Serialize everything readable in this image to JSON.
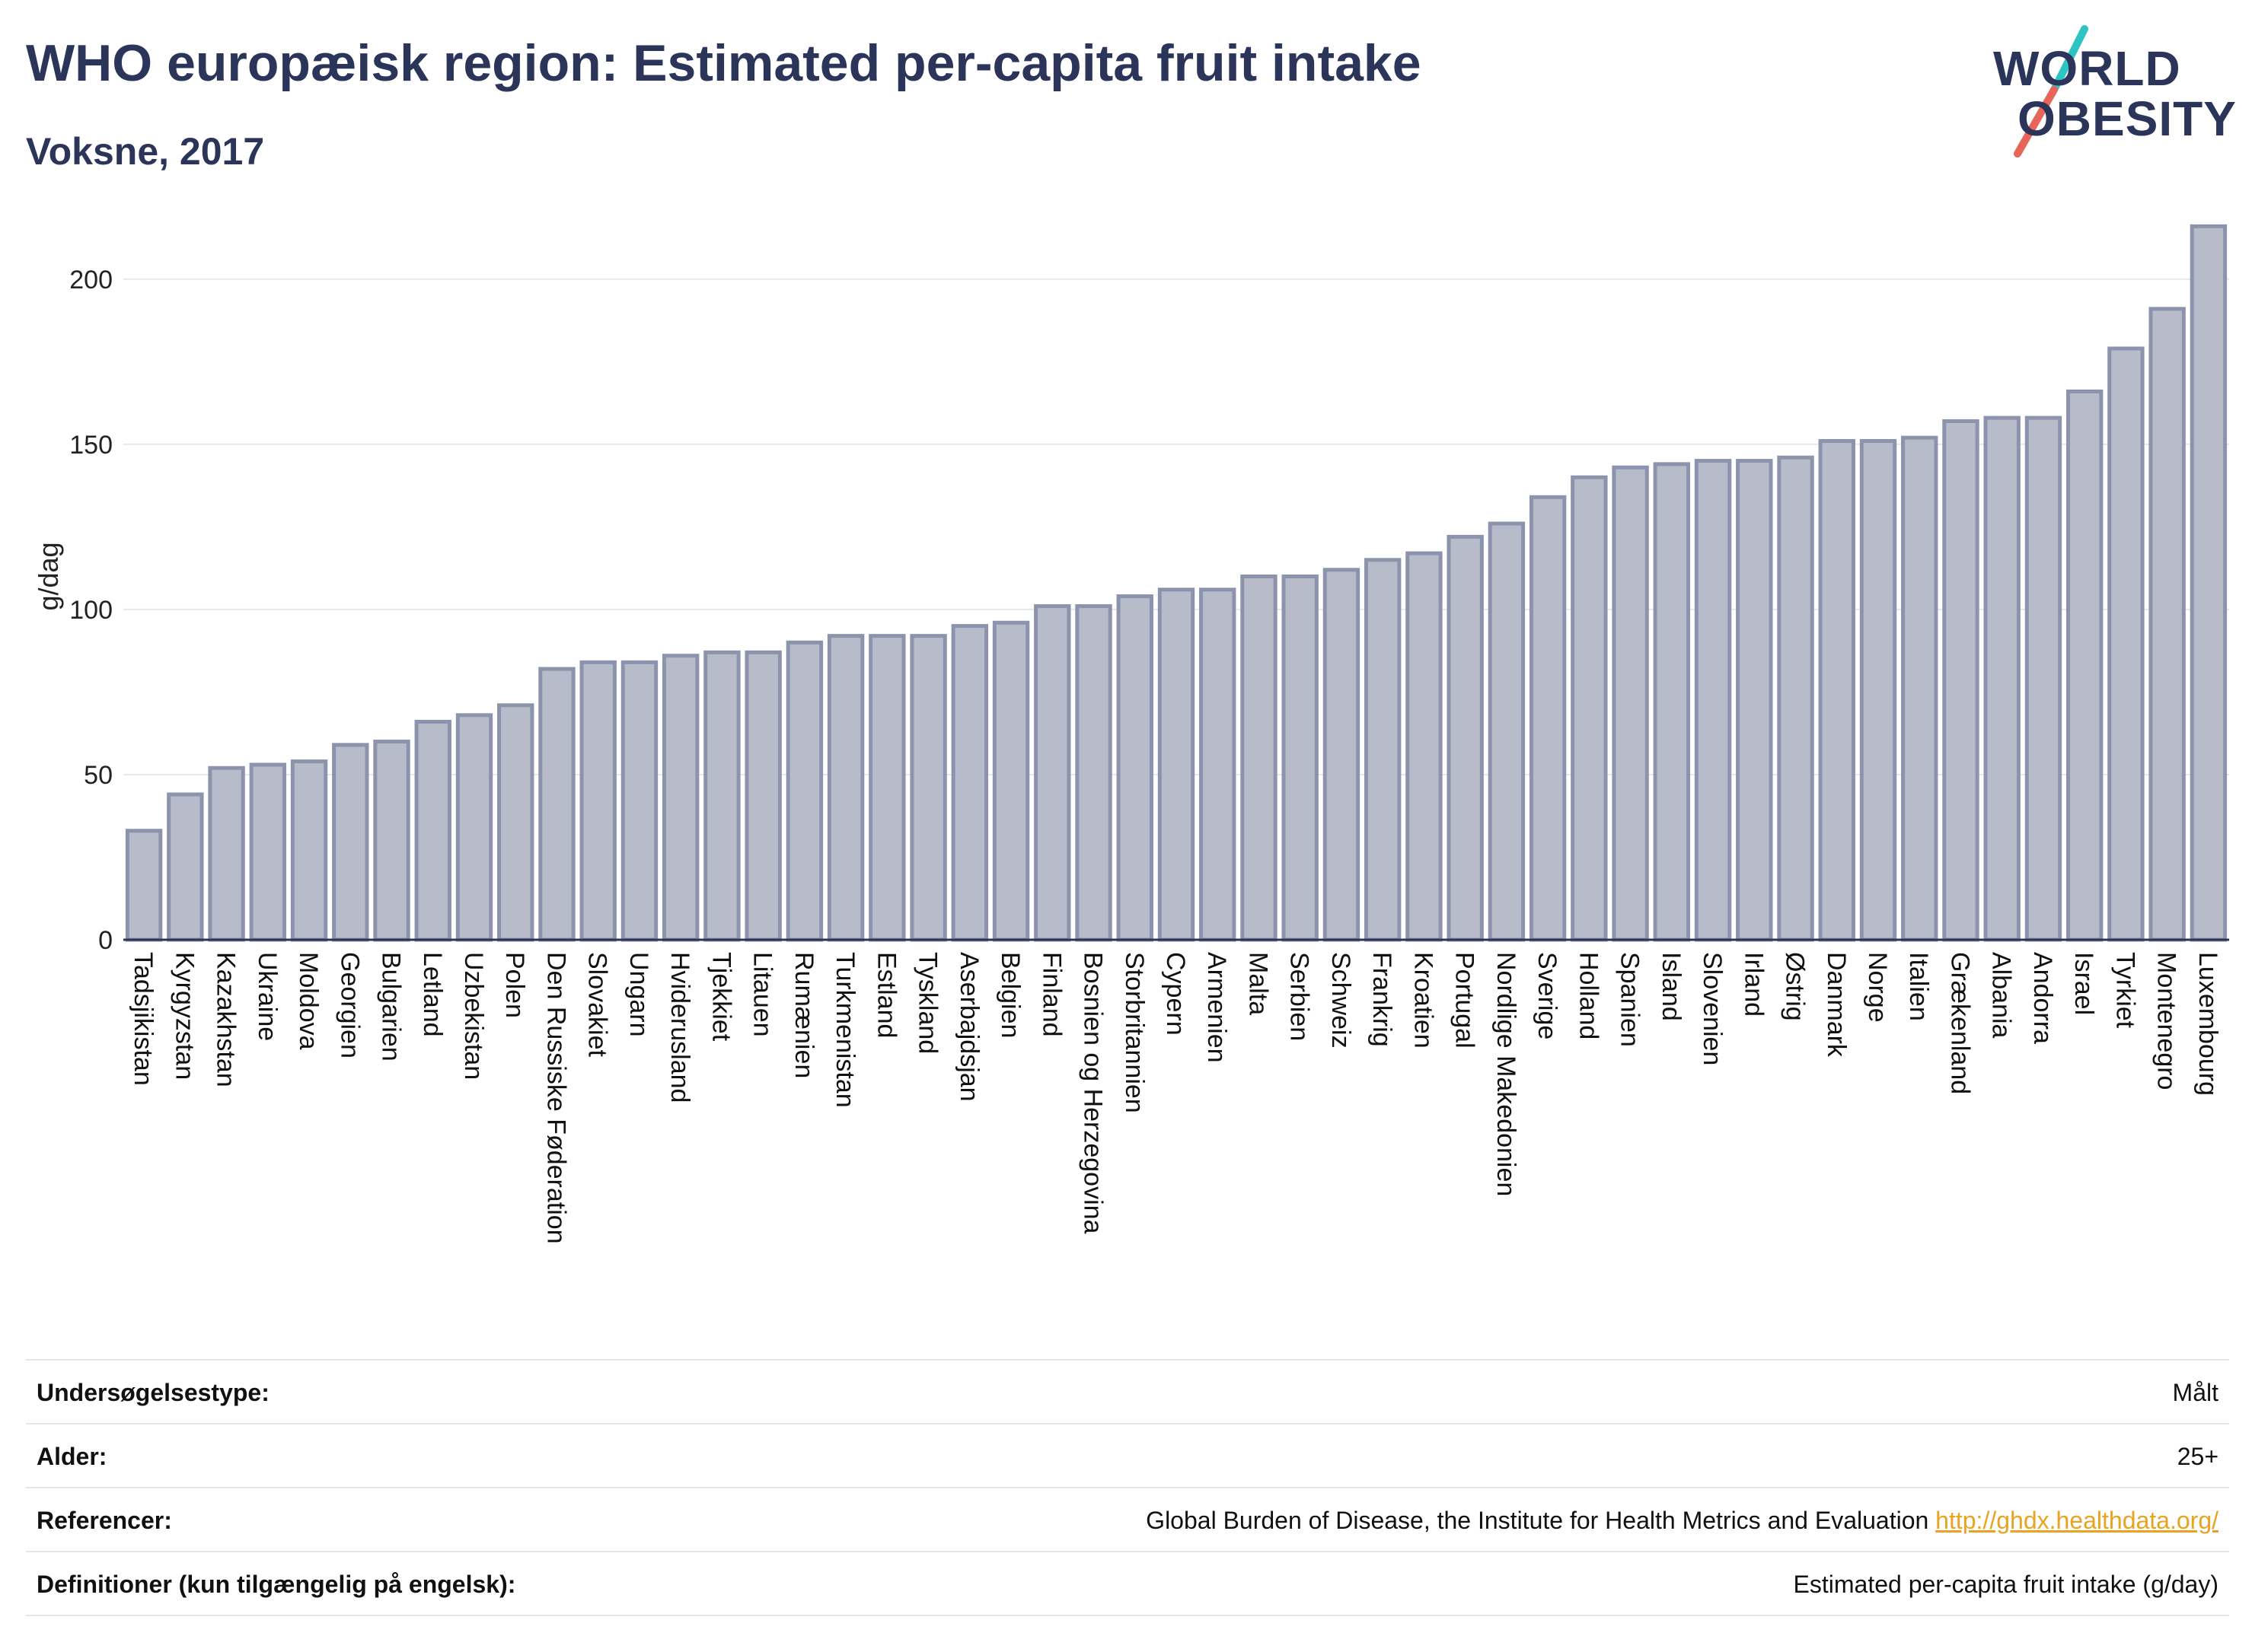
{
  "header": {
    "title": "WHO europæisk region: Estimated per-capita fruit intake",
    "subtitle": "Voksne, 2017"
  },
  "logo": {
    "line1": "WORLD",
    "line2": "OBESITY",
    "colors": {
      "text": "#2b3559",
      "slash_top": "#2ec4c4",
      "slash_bottom": "#e8655a"
    }
  },
  "colors": {
    "bar_fill": "#b7bccb",
    "bar_stroke": "#8c93ac",
    "grid": "#e6e8ef",
    "axis": "#2b3559",
    "link": "#e8a320"
  },
  "chart_data": {
    "type": "bar",
    "ylabel": "g/dag",
    "ylim": [
      0,
      220
    ],
    "yticks": [
      0,
      50,
      100,
      150,
      200
    ],
    "grid": true,
    "categories": [
      "Tadsjikistan",
      "Kyrgyzstan",
      "Kazakhstan",
      "Ukraine",
      "Moldova",
      "Georgien",
      "Bulgarien",
      "Letland",
      "Uzbekistan",
      "Polen",
      "Den Russiske Føderation",
      "Slovakiet",
      "Ungarn",
      "Hviderusland",
      "Tjekkiet",
      "Litauen",
      "Rumænien",
      "Turkmenistan",
      "Estland",
      "Tyskland",
      "Aserbajdsjan",
      "Belgien",
      "Finland",
      "Bosnien og Herzegovina",
      "Storbritannien",
      "Cypern",
      "Armenien",
      "Malta",
      "Serbien",
      "Schweiz",
      "Frankrig",
      "Kroatien",
      "Portugal",
      "Nordlige Makedonien",
      "Sverige",
      "Holland",
      "Spanien",
      "Island",
      "Slovenien",
      "Irland",
      "Østrig",
      "Danmark",
      "Norge",
      "Italien",
      "Grækenland",
      "Albania",
      "Andorra",
      "Israel",
      "Tyrkiet",
      "Montenegro",
      "Luxembourg"
    ],
    "values": [
      33,
      44,
      52,
      53,
      54,
      59,
      60,
      66,
      68,
      71,
      82,
      84,
      84,
      86,
      87,
      87,
      90,
      92,
      92,
      92,
      95,
      96,
      101,
      101,
      104,
      106,
      106,
      110,
      110,
      112,
      115,
      117,
      122,
      126,
      134,
      140,
      143,
      144,
      145,
      145,
      146,
      151,
      151,
      152,
      157,
      158,
      158,
      166,
      179,
      191,
      216
    ]
  },
  "info": {
    "rows": [
      {
        "key": "Undersøgelsestype:",
        "value": "Målt"
      },
      {
        "key": "Alder:",
        "value": "25+"
      },
      {
        "key": "Referencer:",
        "value": "Global Burden of Disease, the Institute for Health Metrics and Evaluation",
        "link": "http://ghdx.healthdata.org/"
      },
      {
        "key": "Definitioner (kun tilgængelig på engelsk):",
        "value": "Estimated per-capita fruit intake (g/day)"
      }
    ]
  }
}
